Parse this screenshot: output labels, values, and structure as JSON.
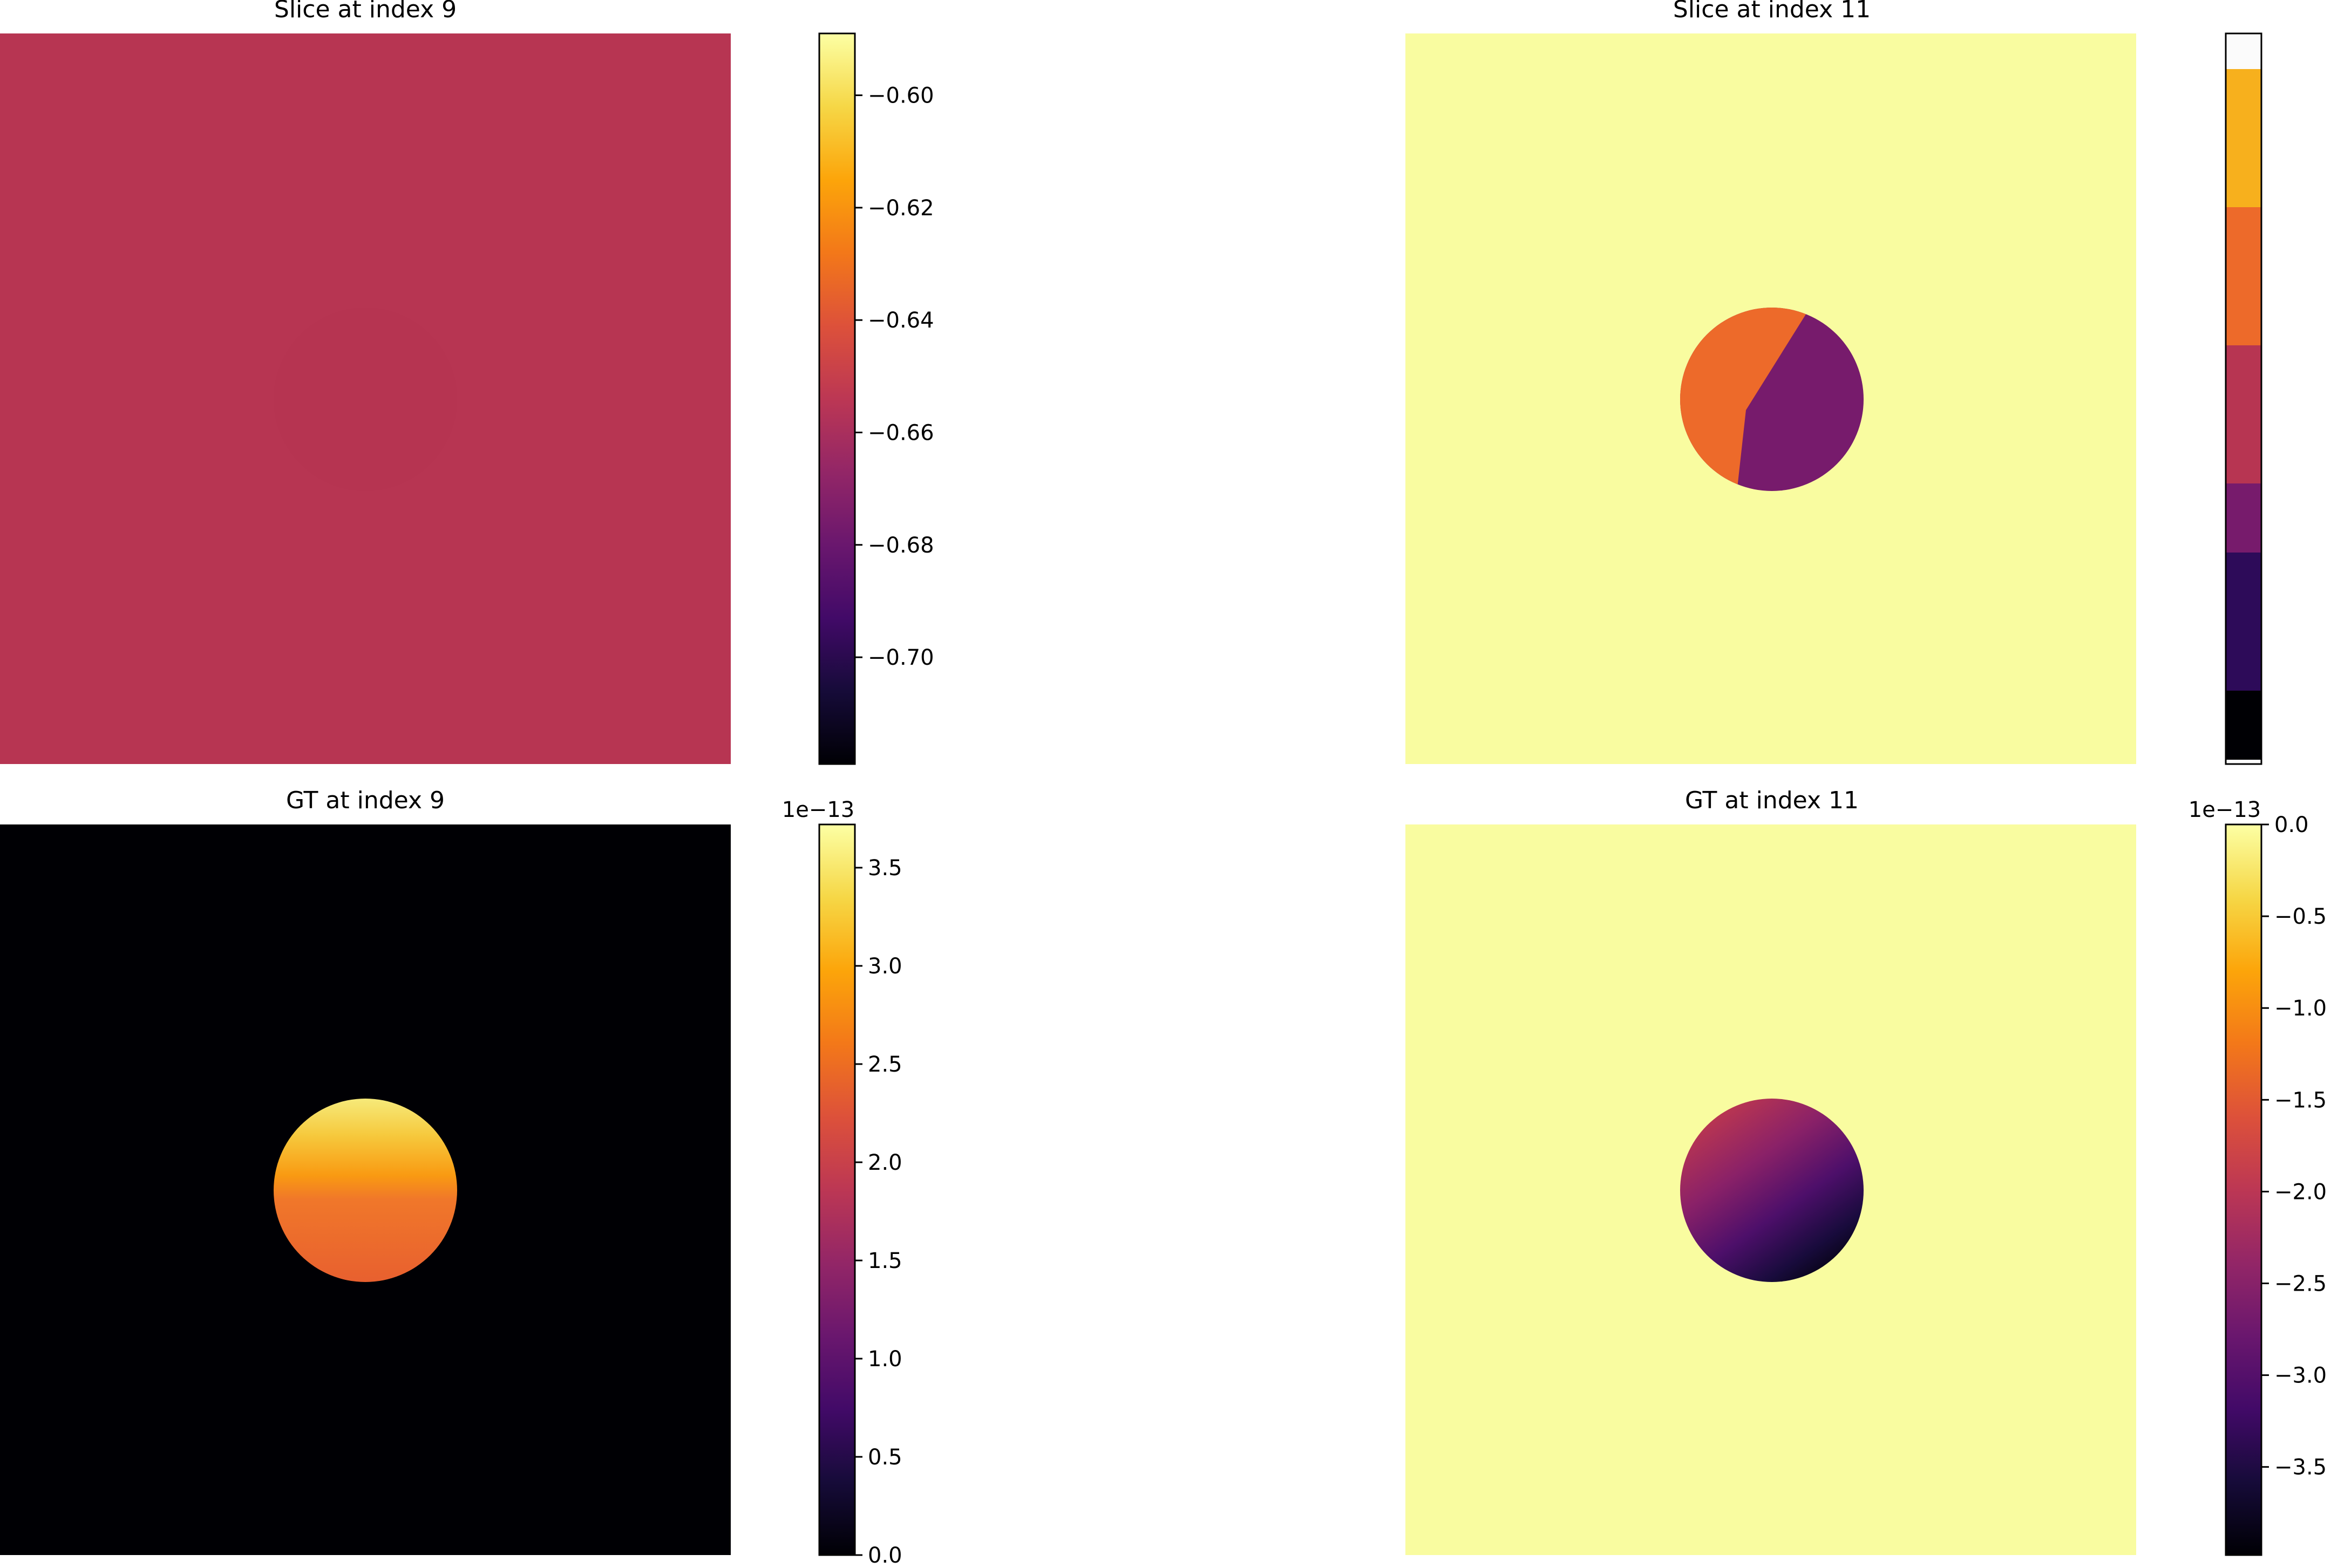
{
  "chart_data": [
    {
      "type": "heatmap",
      "title": "Slice at index 9",
      "colormap": "inferno",
      "background_color": "#b73552",
      "disk_color": "#b63451",
      "colorbar": {
        "vmin": -0.719,
        "vmax": -0.589,
        "ticks": [
          -0.6,
          -0.62,
          -0.64,
          -0.66,
          -0.68,
          -0.7
        ],
        "tick_labels": [
          "−0.60",
          "−0.62",
          "−0.64",
          "−0.66",
          "−0.68",
          "−0.70"
        ],
        "offset_label": ""
      }
    },
    {
      "type": "heatmap",
      "title": "Slice at index 11",
      "colormap": "inferno",
      "background_color": "#f9fca0",
      "regions": [
        {
          "name": "disk-left-half",
          "color": "#ed6a2a"
        },
        {
          "name": "disk-right-half",
          "color": "#771b6c"
        }
      ],
      "colorbar": {
        "ticks": [],
        "tick_labels": [],
        "offset_label": "",
        "bands": [
          "#fbfbfb",
          "#f7b01d",
          "#ed6a2a",
          "#b73552",
          "#771b6c",
          "#2d0b59",
          "#000004",
          "#fbfbfb"
        ]
      }
    },
    {
      "type": "heatmap",
      "title": "GT at index 9",
      "colormap": "inferno",
      "background_color": "#000004",
      "disk_gradient": {
        "top": "#f6e160",
        "middle": "#f98e0b",
        "bottom": "#e8602f"
      },
      "colorbar": {
        "vmin": 0.0,
        "vmax": 3.72,
        "ticks": [
          0.0,
          0.5,
          1.0,
          1.5,
          2.0,
          2.5,
          3.0,
          3.5
        ],
        "tick_labels": [
          "0.0",
          "0.5",
          "1.0",
          "1.5",
          "2.0",
          "2.5",
          "3.0",
          "3.5"
        ],
        "offset_label": "1e−13"
      }
    },
    {
      "type": "heatmap",
      "title": "GT at index 11",
      "colormap": "inferno",
      "background_color": "#f9fca0",
      "disk_gradient": {
        "top_left": "#c83c4a",
        "middle": "#5c1270",
        "bottom_right": "#000004"
      },
      "colorbar": {
        "vmin": -3.98,
        "vmax": 0.0,
        "ticks": [
          0.0,
          -0.5,
          -1.0,
          -1.5,
          -2.0,
          -2.5,
          -3.0,
          -3.5
        ],
        "tick_labels": [
          "0.0",
          "−0.5",
          "−1.0",
          "−1.5",
          "−2.0",
          "−2.5",
          "−3.0",
          "−3.5"
        ],
        "offset_label": "1e−13"
      }
    }
  ]
}
